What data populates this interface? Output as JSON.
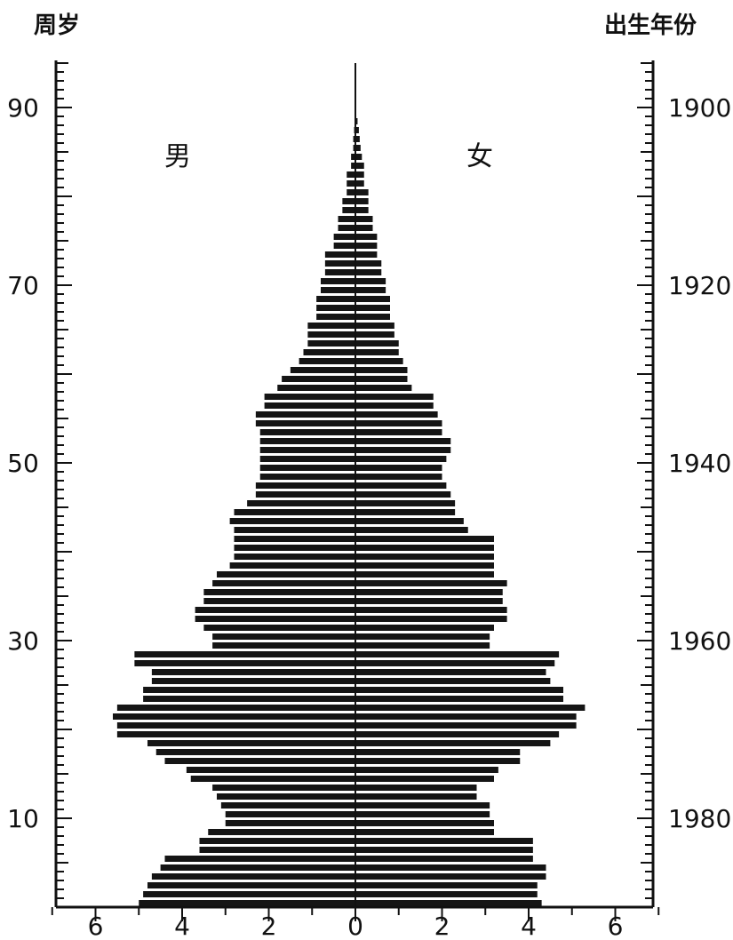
{
  "chart_data": {
    "type": "bar",
    "layout": "population-pyramid",
    "left_axis_title": "周岁",
    "right_axis_title": "出生年份",
    "male_label": "男",
    "female_label": "女",
    "x_ticks": [
      "6",
      "4",
      "2",
      "0",
      "2",
      "4",
      "6"
    ],
    "y_ticks_age": [
      10,
      30,
      50,
      70,
      90
    ],
    "y_ticks_year": [
      1980,
      1960,
      1940,
      1920,
      1900
    ],
    "age_range": [
      0,
      95
    ],
    "x_range": [
      -7,
      7
    ],
    "ages": [
      0,
      1,
      2,
      3,
      4,
      5,
      6,
      7,
      8,
      9,
      10,
      11,
      12,
      13,
      14,
      15,
      16,
      17,
      18,
      19,
      20,
      21,
      22,
      23,
      24,
      25,
      26,
      27,
      28,
      29,
      30,
      31,
      32,
      33,
      34,
      35,
      36,
      37,
      38,
      39,
      40,
      41,
      42,
      43,
      44,
      45,
      46,
      47,
      48,
      49,
      50,
      51,
      52,
      53,
      54,
      55,
      56,
      57,
      58,
      59,
      60,
      61,
      62,
      63,
      64,
      65,
      66,
      67,
      68,
      69,
      70,
      71,
      72,
      73,
      74,
      75,
      76,
      77,
      78,
      79,
      80,
      81,
      82,
      83,
      84,
      85,
      86,
      87,
      88
    ],
    "series": [
      {
        "name": "男",
        "values": [
          5.0,
          4.9,
          4.8,
          4.7,
          4.5,
          4.4,
          3.6,
          3.6,
          3.4,
          3.0,
          3.0,
          3.1,
          3.2,
          3.3,
          3.8,
          3.9,
          4.4,
          4.6,
          4.8,
          5.5,
          5.5,
          5.6,
          5.5,
          4.9,
          4.9,
          4.7,
          4.7,
          5.1,
          5.1,
          3.3,
          3.3,
          3.5,
          3.7,
          3.7,
          3.5,
          3.5,
          3.3,
          3.2,
          2.9,
          2.8,
          2.8,
          2.8,
          2.8,
          2.9,
          2.8,
          2.5,
          2.3,
          2.3,
          2.2,
          2.2,
          2.2,
          2.2,
          2.2,
          2.2,
          2.3,
          2.3,
          2.1,
          2.1,
          1.8,
          1.7,
          1.5,
          1.3,
          1.2,
          1.1,
          1.1,
          1.1,
          0.9,
          0.9,
          0.9,
          0.8,
          0.8,
          0.7,
          0.7,
          0.7,
          0.5,
          0.5,
          0.4,
          0.4,
          0.3,
          0.3,
          0.2,
          0.2,
          0.2,
          0.1,
          0.1,
          0.05,
          0.05,
          0.03,
          0.02
        ]
      },
      {
        "name": "女",
        "values": [
          4.3,
          4.2,
          4.2,
          4.4,
          4.4,
          4.1,
          4.1,
          4.1,
          3.2,
          3.2,
          3.1,
          3.1,
          2.8,
          2.8,
          3.2,
          3.3,
          3.8,
          3.8,
          4.5,
          4.7,
          5.1,
          5.1,
          5.3,
          4.8,
          4.8,
          4.5,
          4.4,
          4.6,
          4.7,
          3.1,
          3.1,
          3.2,
          3.5,
          3.5,
          3.4,
          3.4,
          3.5,
          3.2,
          3.2,
          3.2,
          3.2,
          3.2,
          2.6,
          2.5,
          2.3,
          2.3,
          2.2,
          2.1,
          2.0,
          2.0,
          2.1,
          2.2,
          2.2,
          2.0,
          2.0,
          1.9,
          1.8,
          1.8,
          1.3,
          1.2,
          1.2,
          1.1,
          1.0,
          1.0,
          0.9,
          0.9,
          0.8,
          0.8,
          0.8,
          0.7,
          0.7,
          0.6,
          0.6,
          0.5,
          0.5,
          0.5,
          0.4,
          0.4,
          0.3,
          0.3,
          0.3,
          0.2,
          0.2,
          0.2,
          0.15,
          0.12,
          0.1,
          0.08,
          0.05
        ]
      }
    ]
  }
}
